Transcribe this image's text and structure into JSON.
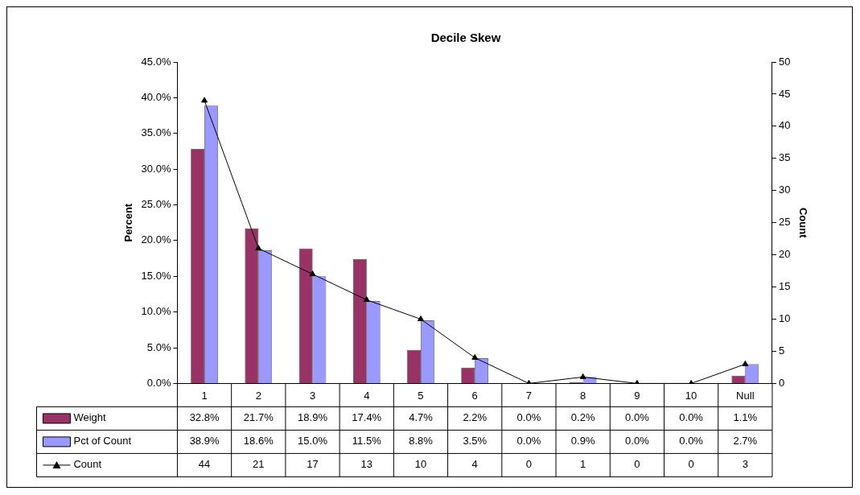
{
  "chart_data": {
    "type": "bar",
    "title": "Decile Skew",
    "ylabel": "Percent",
    "y2label": "Count",
    "legend": "bottom",
    "grid": false,
    "categories": [
      "1",
      "2",
      "3",
      "4",
      "5",
      "6",
      "7",
      "8",
      "9",
      "10",
      "Null"
    ],
    "ylim": [
      0,
      45
    ],
    "yticks": [
      {
        "value": 0,
        "label": "0.0%"
      },
      {
        "value": 5,
        "label": "5.0%"
      },
      {
        "value": 10,
        "label": "10.0%"
      },
      {
        "value": 15,
        "label": "15.0%"
      },
      {
        "value": 20,
        "label": "20.0%"
      },
      {
        "value": 25,
        "label": "25.0%"
      },
      {
        "value": 30,
        "label": "30.0%"
      },
      {
        "value": 35,
        "label": "35.0%"
      },
      {
        "value": 40,
        "label": "40.0%"
      },
      {
        "value": 45,
        "label": "45.0%"
      }
    ],
    "y2lim": [
      0,
      50
    ],
    "y2ticks": [
      0,
      5,
      10,
      15,
      20,
      25,
      30,
      35,
      40,
      45,
      50
    ],
    "series": [
      {
        "name": "Weight",
        "color": "#993366",
        "values": [
          32.8,
          21.7,
          18.9,
          17.4,
          4.7,
          2.2,
          0.0,
          0.2,
          0.0,
          0.0,
          1.1
        ],
        "value_labels": [
          "32.8%",
          "21.7%",
          "18.9%",
          "17.4%",
          "4.7%",
          "2.2%",
          "0.0%",
          "0.2%",
          "0.0%",
          "0.0%",
          "1.1%"
        ]
      },
      {
        "name": "Pct of Count",
        "color": "#9999ff",
        "values": [
          38.9,
          18.6,
          15.0,
          11.5,
          8.8,
          3.5,
          0.0,
          0.9,
          0.0,
          0.0,
          2.7
        ],
        "value_labels": [
          "38.9%",
          "18.6%",
          "15.0%",
          "11.5%",
          "8.8%",
          "3.5%",
          "0.0%",
          "0.9%",
          "0.0%",
          "0.0%",
          "2.7%"
        ]
      },
      {
        "name": "Count",
        "type": "line",
        "axis": "y2",
        "marker": "triangle",
        "color": "#000000",
        "values": [
          44,
          21,
          17,
          13,
          10,
          4,
          0,
          1,
          0,
          0,
          3
        ],
        "value_labels": [
          "44",
          "21",
          "17",
          "13",
          "10",
          "4",
          "0",
          "1",
          "0",
          "0",
          "3"
        ]
      }
    ]
  }
}
